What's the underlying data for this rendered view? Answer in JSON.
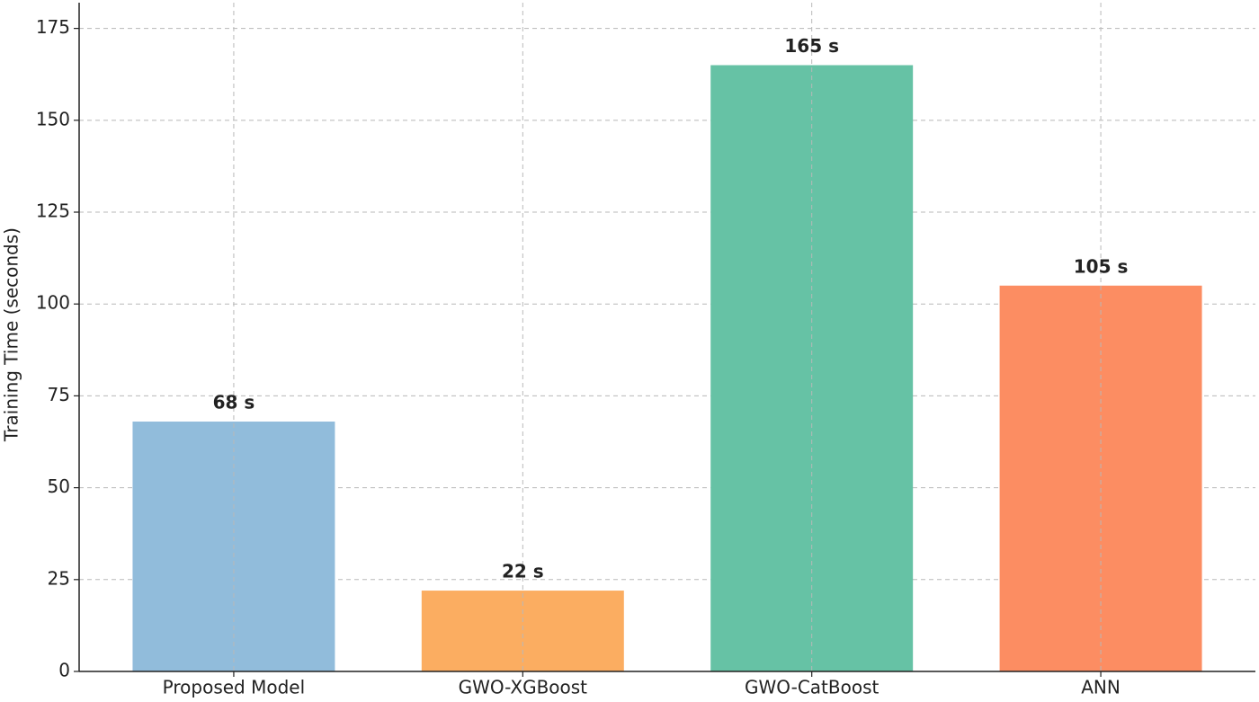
{
  "chart_data": {
    "type": "bar",
    "y_label": "Training Time (seconds)",
    "categories": [
      "Proposed Model",
      "GWO-XGBoost",
      "GWO-CatBoost",
      "ANN"
    ],
    "values": [
      68,
      22,
      165,
      105
    ],
    "value_labels": [
      "68 s",
      "22 s",
      "165 s",
      "105 s"
    ],
    "colors": [
      "#91bcdb",
      "#fbad61",
      "#66c2a5",
      "#fc8d62"
    ],
    "ylim": [
      0,
      182
    ],
    "yticks": [
      0,
      25,
      50,
      75,
      100,
      125,
      150,
      175
    ],
    "grid": true
  }
}
